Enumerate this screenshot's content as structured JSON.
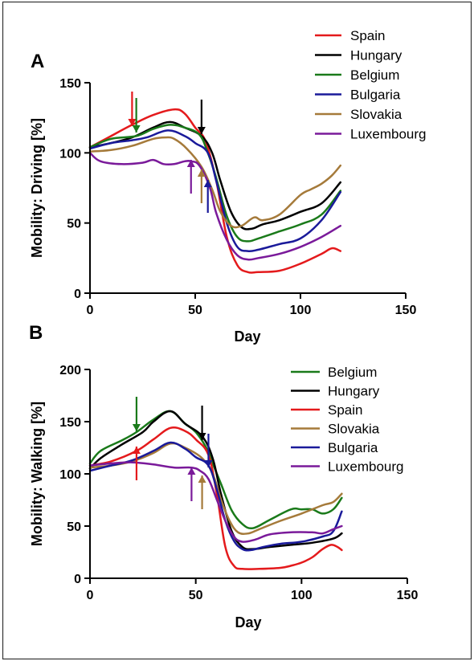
{
  "chart_data": [
    {
      "type": "line",
      "panel_label": "A",
      "xlabel": "Day",
      "ylabel": "Mobility: Driving [%]",
      "xlim": [
        0,
        150
      ],
      "ylim": [
        0,
        150
      ],
      "xticks": [
        0,
        50,
        100,
        150
      ],
      "yticks": [
        0,
        50,
        100,
        150
      ],
      "legend_position": "top-right",
      "series": [
        {
          "name": "Spain",
          "color": "#e41a1c",
          "x": [
            0,
            10,
            20,
            30,
            40,
            45,
            50,
            55,
            60,
            65,
            70,
            75,
            80,
            90,
            100,
            110,
            115,
            119
          ],
          "y": [
            104,
            112,
            120,
            127,
            131,
            128,
            118,
            108,
            80,
            40,
            20,
            15,
            15,
            16,
            21,
            28,
            32,
            30
          ],
          "arrow_day": 20
        },
        {
          "name": "Hungary",
          "color": "#000000",
          "x": [
            0,
            10,
            20,
            30,
            38,
            45,
            53,
            58,
            62,
            67,
            72,
            77,
            82,
            90,
            100,
            110,
            119
          ],
          "y": [
            104,
            107,
            111,
            118,
            122,
            118,
            112,
            100,
            80,
            58,
            47,
            46,
            49,
            52,
            58,
            64,
            79
          ],
          "arrow_day": 53
        },
        {
          "name": "Belgium",
          "color": "#1a7a1a",
          "x": [
            0,
            10,
            22,
            30,
            38,
            45,
            52,
            56,
            60,
            65,
            70,
            75,
            80,
            90,
            100,
            110,
            119
          ],
          "y": [
            104,
            110,
            112,
            117,
            120,
            118,
            113,
            100,
            82,
            55,
            40,
            37,
            39,
            44,
            49,
            56,
            73
          ],
          "arrow_day": 22
        },
        {
          "name": "Bulgaria",
          "color": "#1a1a9a",
          "x": [
            0,
            10,
            20,
            27,
            37,
            45,
            50,
            56,
            60,
            65,
            70,
            75,
            80,
            90,
            100,
            110,
            119
          ],
          "y": [
            103,
            107,
            109,
            111,
            116,
            112,
            107,
            100,
            80,
            50,
            33,
            30,
            31,
            35,
            39,
            52,
            72
          ],
          "arrow_day": 56
        },
        {
          "name": "Slovakia",
          "color": "#a57a3a",
          "x": [
            0,
            10,
            20,
            30,
            36,
            40,
            46,
            53,
            58,
            62,
            67,
            72,
            78,
            82,
            90,
            100,
            105,
            110,
            115,
            119
          ],
          "y": [
            101,
            102,
            105,
            110,
            111,
            110,
            103,
            90,
            74,
            58,
            48,
            48,
            54,
            52,
            56,
            70,
            74,
            78,
            84,
            91
          ],
          "arrow_day": 53
        },
        {
          "name": "Luxembourg",
          "color": "#7a1a9a",
          "x": [
            0,
            5,
            15,
            25,
            30,
            35,
            40,
            45,
            48,
            52,
            57,
            60,
            65,
            70,
            75,
            80,
            90,
            100,
            110,
            119
          ],
          "y": [
            100,
            94,
            92,
            93,
            95,
            92,
            92,
            94,
            94,
            91,
            75,
            57,
            38,
            27,
            24,
            25,
            28,
            33,
            40,
            48
          ],
          "arrow_day": 48
        }
      ]
    },
    {
      "type": "line",
      "panel_label": "B",
      "xlabel": "Day",
      "ylabel": "Mobility: Walking [%]",
      "xlim": [
        0,
        150
      ],
      "ylim": [
        0,
        200
      ],
      "xticks": [
        0,
        50,
        100,
        150
      ],
      "yticks": [
        0,
        50,
        100,
        150,
        200
      ],
      "legend_position": "top-right",
      "series": [
        {
          "name": "Belgium",
          "color": "#1a7a1a",
          "x": [
            0,
            5,
            15,
            22,
            30,
            38,
            45,
            50,
            55,
            58,
            62,
            67,
            72,
            77,
            85,
            95,
            100,
            105,
            110,
            115,
            119
          ],
          "y": [
            110,
            122,
            132,
            140,
            152,
            160,
            148,
            140,
            125,
            110,
            90,
            65,
            52,
            48,
            56,
            66,
            66,
            66,
            62,
            66,
            77
          ],
          "arrow_day": 22
        },
        {
          "name": "Hungary",
          "color": "#000000",
          "x": [
            0,
            5,
            15,
            25,
            30,
            38,
            45,
            53,
            58,
            62,
            67,
            72,
            77,
            85,
            95,
            105,
            115,
            119
          ],
          "y": [
            105,
            115,
            128,
            140,
            150,
            160,
            148,
            136,
            115,
            80,
            45,
            30,
            28,
            30,
            32,
            34,
            38,
            43
          ],
          "arrow_day": 53
        },
        {
          "name": "Spain",
          "color": "#e41a1c",
          "x": [
            0,
            10,
            22,
            30,
            38,
            45,
            50,
            56,
            60,
            64,
            68,
            72,
            80,
            90,
            95,
            100,
            105,
            110,
            114,
            117,
            119
          ],
          "y": [
            108,
            112,
            122,
            133,
            144,
            141,
            133,
            118,
            80,
            30,
            12,
            9,
            9,
            10,
            12,
            15,
            20,
            28,
            32,
            30,
            27
          ],
          "arrow_day": 22
        },
        {
          "name": "Slovakia",
          "color": "#a57a3a",
          "x": [
            0,
            10,
            20,
            30,
            38,
            45,
            53,
            58,
            62,
            66,
            70,
            75,
            80,
            90,
            100,
            110,
            115,
            119
          ],
          "y": [
            106,
            108,
            112,
            120,
            129,
            125,
            115,
            100,
            75,
            55,
            44,
            43,
            47,
            55,
            62,
            70,
            73,
            81
          ],
          "arrow_day": 53
        },
        {
          "name": "Bulgaria",
          "color": "#1a1a9a",
          "x": [
            0,
            10,
            20,
            30,
            38,
            45,
            50,
            56,
            60,
            64,
            68,
            72,
            76,
            82,
            90,
            100,
            110,
            115,
            119
          ],
          "y": [
            103,
            108,
            113,
            122,
            130,
            124,
            116,
            108,
            85,
            55,
            36,
            28,
            27,
            30,
            33,
            35,
            40,
            45,
            64
          ],
          "arrow_day": 56
        },
        {
          "name": "Luxembourg",
          "color": "#7a1a9a",
          "x": [
            0,
            10,
            20,
            30,
            40,
            48,
            52,
            56,
            60,
            64,
            68,
            72,
            78,
            85,
            95,
            105,
            110,
            115,
            119
          ],
          "y": [
            108,
            110,
            111,
            109,
            106,
            106,
            103,
            95,
            75,
            55,
            40,
            35,
            37,
            42,
            44,
            44,
            43,
            47,
            50
          ],
          "arrow_day": 48
        }
      ]
    }
  ]
}
